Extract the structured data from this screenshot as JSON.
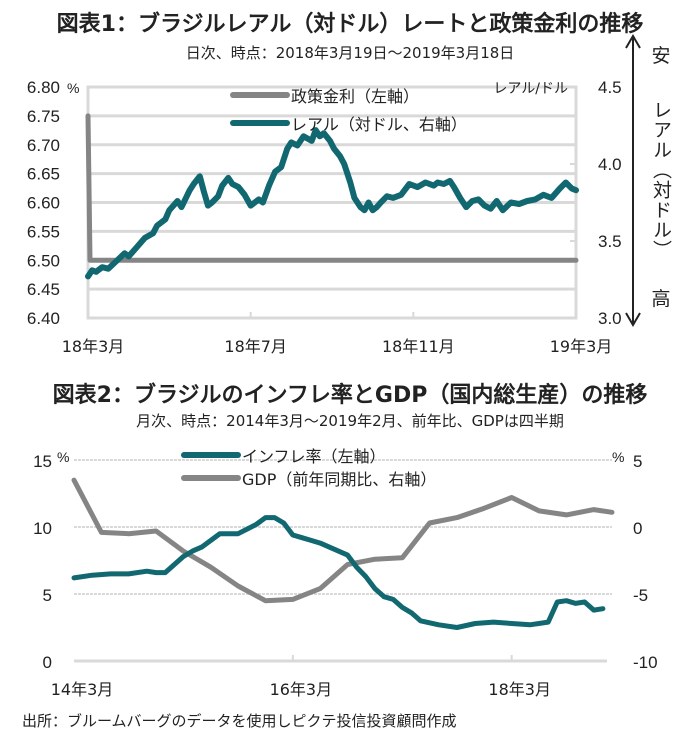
{
  "colors": {
    "teal": "#126870",
    "gray": "#858585",
    "grid": "#d9d9d9",
    "text": "#222222"
  },
  "chart1": {
    "title": "図表1：ブラジルレアル（対ドル）レートと政策金利の推移",
    "subtitle": "日次、時点：2018年3月19日～2019年3月18日"
  },
  "chart2": {
    "title": "図表2：ブラジルのインフレ率とGDP（国内総生産）の推移",
    "subtitle": "月次、時点：2014年3月～2019年2月、前年比、GDPは四半期"
  },
  "source": "出所：ブルームバーグのデータを使用しピクテ投信投資顧問作成",
  "chart_data": [
    {
      "type": "line",
      "title": "図表1：ブラジルレアル（対ドル）レートと政策金利の推移",
      "subtitle": "日次、時点：2018年3月19日～2019年3月18日",
      "xlabel": "",
      "x_ticks": [
        "18年3月",
        "18年7月",
        "18年11月",
        "19年3月"
      ],
      "x_range": [
        0,
        12
      ],
      "y_left": {
        "label": "%",
        "ticks": [
          "6.80",
          "6.75",
          "6.70",
          "6.65",
          "6.60",
          "6.55",
          "6.50",
          "6.45",
          "6.40"
        ],
        "range": [
          6.4,
          6.8
        ]
      },
      "y_right": {
        "label": "レアル/ドル",
        "ticks": [
          "4.5",
          "4.0",
          "3.5",
          "3.0"
        ],
        "range": [
          3.0,
          4.5
        ],
        "annotation_top": "安",
        "annotation_bottom": "高",
        "annotation_side": "レアル（対ドル）"
      },
      "grid": true,
      "legend_position": "top-center",
      "series": [
        {
          "name": "政策金利（左軸）",
          "axis": "left",
          "color": "#858585",
          "x": [
            0,
            0.05,
            12
          ],
          "values": [
            6.75,
            6.5,
            6.5
          ]
        },
        {
          "name": "レアル（対ドル、右軸）",
          "axis": "right",
          "color": "#126870",
          "x": [
            0,
            0.1,
            0.2,
            0.35,
            0.5,
            0.7,
            0.9,
            1.0,
            1.2,
            1.4,
            1.6,
            1.7,
            1.9,
            2.0,
            2.2,
            2.3,
            2.5,
            2.6,
            2.75,
            2.85,
            2.95,
            3.05,
            3.2,
            3.3,
            3.45,
            3.55,
            3.7,
            3.85,
            4.0,
            4.2,
            4.3,
            4.45,
            4.6,
            4.75,
            4.9,
            5.0,
            5.15,
            5.3,
            5.5,
            5.6,
            5.7,
            5.8,
            5.95,
            6.05,
            6.2,
            6.3,
            6.45,
            6.55,
            6.7,
            6.8,
            6.9,
            7.0,
            7.1,
            7.2,
            7.35,
            7.5,
            7.7,
            7.9,
            8.1,
            8.3,
            8.5,
            8.6,
            8.75,
            8.9,
            9.0,
            9.15,
            9.3,
            9.45,
            9.6,
            9.75,
            9.9,
            10.05,
            10.2,
            10.4,
            10.6,
            10.8,
            11.0,
            11.2,
            11.4,
            11.6,
            11.75,
            11.9,
            12.0
          ],
          "values": [
            3.27,
            3.31,
            3.3,
            3.33,
            3.32,
            3.37,
            3.42,
            3.4,
            3.46,
            3.52,
            3.55,
            3.6,
            3.64,
            3.7,
            3.76,
            3.72,
            3.83,
            3.87,
            3.92,
            3.82,
            3.73,
            3.75,
            3.79,
            3.86,
            3.91,
            3.87,
            3.85,
            3.8,
            3.73,
            3.77,
            3.75,
            3.86,
            3.95,
            3.98,
            4.1,
            4.14,
            4.12,
            4.18,
            4.15,
            4.22,
            4.18,
            4.2,
            4.15,
            4.1,
            4.05,
            4.0,
            3.88,
            3.78,
            3.72,
            3.7,
            3.75,
            3.7,
            3.72,
            3.75,
            3.79,
            3.78,
            3.8,
            3.87,
            3.85,
            3.88,
            3.86,
            3.88,
            3.87,
            3.89,
            3.85,
            3.78,
            3.72,
            3.76,
            3.77,
            3.73,
            3.71,
            3.76,
            3.7,
            3.75,
            3.74,
            3.76,
            3.77,
            3.8,
            3.78,
            3.84,
            3.88,
            3.84,
            3.83
          ]
        }
      ]
    },
    {
      "type": "line",
      "title": "図表2：ブラジルのインフレ率とGDP（国内総生産）の推移",
      "subtitle": "月次、時点：2014年3月～2019年2月、前年比、GDPは四半期",
      "x_ticks": [
        "14年3月",
        "16年3月",
        "18年3月"
      ],
      "x_range": [
        0,
        59
      ],
      "y_left": {
        "label": "%",
        "ticks": [
          "15",
          "10",
          "5",
          "0"
        ],
        "range": [
          0,
          15
        ]
      },
      "y_right": {
        "label": "%",
        "ticks": [
          "5",
          "0",
          "-5",
          "-10"
        ],
        "range": [
          -10,
          5
        ]
      },
      "grid": true,
      "legend_position": "top-center",
      "series": [
        {
          "name": "インフレ率（左軸）",
          "axis": "left",
          "color": "#126870",
          "x": [
            0,
            2,
            4,
            6,
            8,
            9,
            10,
            12,
            13,
            14,
            16,
            18,
            20,
            21,
            22,
            23,
            24,
            25,
            26,
            27,
            28,
            30,
            31,
            32,
            33,
            34,
            35,
            36,
            37,
            38,
            40,
            42,
            44,
            46,
            48,
            50,
            52,
            53,
            54,
            55,
            56,
            57,
            58
          ],
          "values": [
            6.2,
            6.4,
            6.5,
            6.5,
            6.7,
            6.6,
            6.6,
            7.8,
            8.2,
            8.5,
            9.5,
            9.5,
            10.2,
            10.7,
            10.7,
            10.3,
            9.4,
            9.2,
            9.0,
            8.8,
            8.5,
            7.9,
            7.0,
            6.3,
            5.4,
            4.8,
            4.6,
            4.0,
            3.6,
            3.0,
            2.7,
            2.5,
            2.8,
            2.9,
            2.8,
            2.7,
            2.9,
            4.4,
            4.5,
            4.3,
            4.4,
            3.8,
            3.9
          ]
        },
        {
          "name": "GDP（前年同期比、右軸）",
          "axis": "right",
          "color": "#858585",
          "x": [
            0,
            3,
            6,
            9,
            12,
            15,
            18,
            21,
            24,
            27,
            30,
            33,
            36,
            39,
            42,
            45,
            48,
            51,
            54,
            57,
            59
          ],
          "values": [
            3.5,
            -0.4,
            -0.5,
            -0.3,
            -1.8,
            -3.0,
            -4.4,
            -5.5,
            -5.4,
            -4.6,
            -2.8,
            -2.4,
            -2.3,
            0.3,
            0.7,
            1.4,
            2.2,
            1.2,
            0.9,
            1.3,
            1.1
          ]
        }
      ]
    }
  ]
}
